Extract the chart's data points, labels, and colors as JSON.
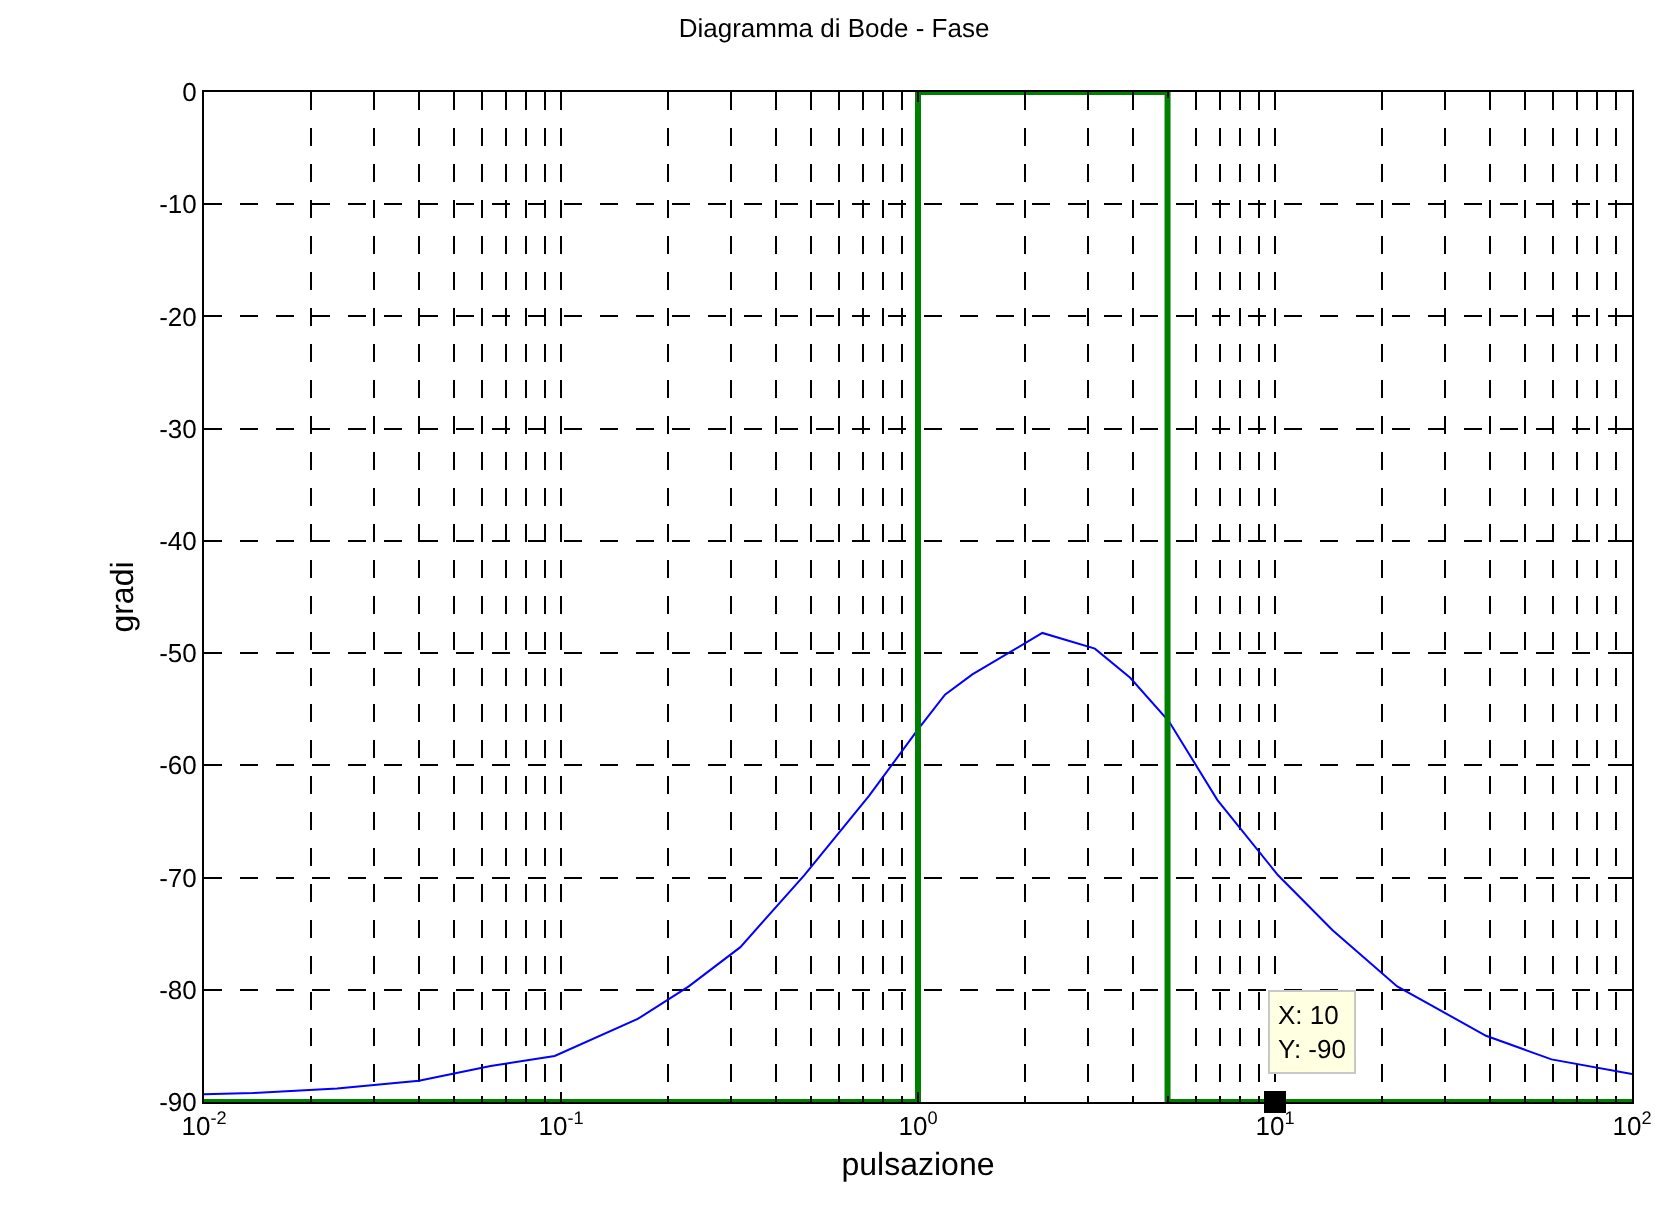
{
  "chart_data": {
    "type": "line",
    "title": "Diagramma di Bode - Fase",
    "xlabel": "pulsazione",
    "ylabel": "gradi",
    "log": "x",
    "grid": true,
    "xlim": [
      0.01,
      100
    ],
    "xticks": [
      {
        "value": 0.01,
        "label": "10$^{-2}$"
      },
      {
        "value": 0.1,
        "label": "10$^{-1}$"
      },
      {
        "value": 1,
        "label": "10$^{0}$"
      },
      {
        "value": 10,
        "label": "10$^{1}$"
      },
      {
        "value": 100,
        "label": "10$^{2}$"
      }
    ],
    "ylim": [
      -90,
      0
    ],
    "yticks": [
      0,
      -10,
      -20,
      -30,
      -40,
      -50,
      -60,
      -70,
      -80,
      -90
    ],
    "series": [
      {
        "color": "#0000ff",
        "line_style": "solid",
        "x": [
          0.01,
          0.0137,
          0.0236,
          0.04,
          0.0635,
          0.096,
          0.164,
          0.228,
          0.318,
          0.48,
          0.73,
          1,
          1.19,
          1.42,
          2.23,
          3.13,
          3.93,
          5.05,
          6.9,
          10.2,
          14.5,
          22,
          39,
          59.5,
          100
        ],
        "values": [
          -89.3,
          -89.2,
          -88.8,
          -88.1,
          -86.8,
          -85.9,
          -82.6,
          -79.7,
          -76.2,
          -69.8,
          -62.7,
          -56.8,
          -53.7,
          -51.9,
          -48.2,
          -49.6,
          -52.2,
          -56.1,
          -63.1,
          -69.8,
          -74.7,
          -79.7,
          -84.1,
          -86.2,
          -87.5
        ]
      },
      {
        "color": "#008000",
        "line_style": "solid",
        "x": [
          0.01,
          1,
          1,
          5,
          5,
          100
        ],
        "values": [
          -90,
          -90,
          0,
          0,
          -90,
          -90
        ]
      },
      {
        "type": "scatter",
        "color": "#000000",
        "marker": "square",
        "x": [
          10
        ],
        "values": [
          -90
        ]
      }
    ],
    "annotations": [
      {
        "text": "X: 10\nY: -90",
        "x": 10,
        "y": -90
      }
    ]
  }
}
